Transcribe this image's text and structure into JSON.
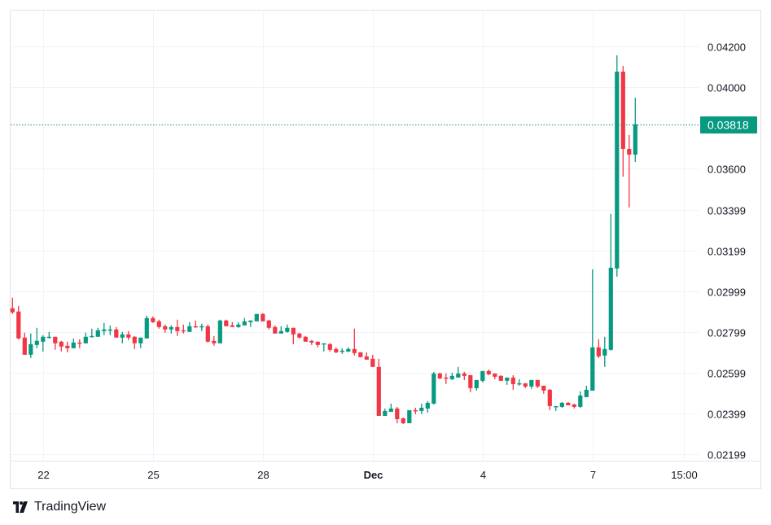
{
  "chart_data": {
    "type": "candlestick",
    "colors": {
      "up": "#089981",
      "down": "#f23645",
      "grid": "#f0f3fa",
      "last_price": "#089981"
    },
    "ylim": [
      0.02199,
      0.042
    ],
    "y_ticks": [
      "0.04200",
      "0.04000",
      "0.03600",
      "0.03399",
      "0.03199",
      "0.02999",
      "0.02799",
      "0.02599",
      "0.02399",
      "0.02199"
    ],
    "x_ticks": [
      {
        "label": "22",
        "index": 5
      },
      {
        "label": "25",
        "index": 23
      },
      {
        "label": "28",
        "index": 41
      },
      {
        "label": "Dec",
        "index": 59,
        "bold": true
      },
      {
        "label": "4",
        "index": 77
      },
      {
        "label": "7",
        "index": 95
      },
      {
        "label": "15:00",
        "index": 110
      }
    ],
    "last_price": "0.03818",
    "grid": true,
    "candles_ohlc": [
      [
        0.02915,
        0.02967,
        0.02887,
        0.02895
      ],
      [
        0.02899,
        0.02927,
        0.02763,
        0.02767
      ],
      [
        0.02771,
        0.02795,
        0.02687,
        0.02687
      ],
      [
        0.02687,
        0.02791,
        0.02671,
        0.02739
      ],
      [
        0.02735,
        0.02819,
        0.02719,
        0.02755
      ],
      [
        0.02751,
        0.02783,
        0.02703,
        0.02775
      ],
      [
        0.02771,
        0.02799,
        0.02767,
        0.02775
      ],
      [
        0.02775,
        0.02775,
        0.02711,
        0.02743
      ],
      [
        0.02751,
        0.02755,
        0.02703,
        0.02727
      ],
      [
        0.02731,
        0.02751,
        0.02699,
        0.02719
      ],
      [
        0.02719,
        0.02767,
        0.02719,
        0.02747
      ],
      [
        0.02747,
        0.02763,
        0.02719,
        0.02743
      ],
      [
        0.02743,
        0.02795,
        0.02743,
        0.02775
      ],
      [
        0.02775,
        0.02815,
        0.02771,
        0.02779
      ],
      [
        0.02775,
        0.02819,
        0.02775,
        0.02807
      ],
      [
        0.02803,
        0.02843,
        0.02783,
        0.02811
      ],
      [
        0.02807,
        0.02831,
        0.02783,
        0.02811
      ],
      [
        0.02811,
        0.02823,
        0.02771,
        0.02771
      ],
      [
        0.02771,
        0.02799,
        0.02743,
        0.02787
      ],
      [
        0.02787,
        0.02803,
        0.02759,
        0.02771
      ],
      [
        0.02775,
        0.02779,
        0.02715,
        0.02743
      ],
      [
        0.02743,
        0.02771,
        0.02719,
        0.02771
      ],
      [
        0.02767,
        0.02879,
        0.02767,
        0.02867
      ],
      [
        0.02867,
        0.02875,
        0.02843,
        0.02847
      ],
      [
        0.02851,
        0.02859,
        0.02815,
        0.02823
      ],
      [
        0.02827,
        0.02835,
        0.02795,
        0.02811
      ],
      [
        0.02811,
        0.02831,
        0.02791,
        0.02823
      ],
      [
        0.02823,
        0.02859,
        0.02779,
        0.02803
      ],
      [
        0.02807,
        0.02835,
        0.02791,
        0.02803
      ],
      [
        0.02799,
        0.02847,
        0.02799,
        0.02827
      ],
      [
        0.02827,
        0.02855,
        0.02819,
        0.02823
      ],
      [
        0.02823,
        0.02839,
        0.02803,
        0.02827
      ],
      [
        0.02827,
        0.02835,
        0.02747,
        0.02751
      ],
      [
        0.02755,
        0.02779,
        0.02731,
        0.02743
      ],
      [
        0.02743,
        0.02859,
        0.02743,
        0.02855
      ],
      [
        0.02855,
        0.02859,
        0.02827,
        0.02827
      ],
      [
        0.02831,
        0.02847,
        0.02823,
        0.02823
      ],
      [
        0.02823,
        0.02847,
        0.02819,
        0.02835
      ],
      [
        0.02831,
        0.02867,
        0.02831,
        0.02851
      ],
      [
        0.02847,
        0.02855,
        0.02823,
        0.02855
      ],
      [
        0.02851,
        0.02887,
        0.02851,
        0.02887
      ],
      [
        0.02887,
        0.02891,
        0.02851,
        0.02851
      ],
      [
        0.02855,
        0.02859,
        0.02811,
        0.02819
      ],
      [
        0.02823,
        0.02831,
        0.02791,
        0.02791
      ],
      [
        0.02791,
        0.02827,
        0.02791,
        0.02803
      ],
      [
        0.02799,
        0.02835,
        0.02795,
        0.02819
      ],
      [
        0.02819,
        0.02819,
        0.02739,
        0.02787
      ],
      [
        0.02791,
        0.02795,
        0.02767,
        0.02771
      ],
      [
        0.02775,
        0.02779,
        0.02751,
        0.02751
      ],
      [
        0.02755,
        0.02759,
        0.02735,
        0.02747
      ],
      [
        0.02751,
        0.02751,
        0.02723,
        0.02735
      ],
      [
        0.02739,
        0.02743,
        0.02703,
        0.02743
      ],
      [
        0.02739,
        0.02743,
        0.02703,
        0.02711
      ],
      [
        0.02715,
        0.02723,
        0.02695,
        0.02699
      ],
      [
        0.02703,
        0.02719,
        0.02691,
        0.02707
      ],
      [
        0.02703,
        0.02723,
        0.02699,
        0.02715
      ],
      [
        0.02715,
        0.02815,
        0.02683,
        0.02695
      ],
      [
        0.02699,
        0.02699,
        0.02675,
        0.02675
      ],
      [
        0.02679,
        0.02699,
        0.02663,
        0.02663
      ],
      [
        0.02667,
        0.02687,
        0.02627,
        0.02627
      ],
      [
        0.02627,
        0.02667,
        0.02387,
        0.02387
      ],
      [
        0.02387,
        0.02423,
        0.02387,
        0.02411
      ],
      [
        0.02407,
        0.02447,
        0.02407,
        0.02423
      ],
      [
        0.02423,
        0.02431,
        0.02351,
        0.02371
      ],
      [
        0.02375,
        0.02379,
        0.02347,
        0.02351
      ],
      [
        0.02351,
        0.02415,
        0.02351,
        0.02415
      ],
      [
        0.02415,
        0.02427,
        0.02395,
        0.02411
      ],
      [
        0.02411,
        0.02447,
        0.02395,
        0.02427
      ],
      [
        0.02423,
        0.02459,
        0.02403,
        0.02451
      ],
      [
        0.02447,
        0.02603,
        0.02443,
        0.02595
      ],
      [
        0.02595,
        0.02599,
        0.02567,
        0.02571
      ],
      [
        0.02575,
        0.02595,
        0.02543,
        0.02571
      ],
      [
        0.02567,
        0.02599,
        0.02563,
        0.02583
      ],
      [
        0.02575,
        0.02627,
        0.02575,
        0.02595
      ],
      [
        0.02595,
        0.02603,
        0.02563,
        0.02583
      ],
      [
        0.02587,
        0.02587,
        0.02503,
        0.02523
      ],
      [
        0.02523,
        0.02563,
        0.02511,
        0.02563
      ],
      [
        0.02559,
        0.02607,
        0.02551,
        0.02607
      ],
      [
        0.02607,
        0.02615,
        0.02587,
        0.02591
      ],
      [
        0.02595,
        0.02595,
        0.02567,
        0.02579
      ],
      [
        0.02583,
        0.02587,
        0.02559,
        0.02559
      ],
      [
        0.02559,
        0.02575,
        0.02539,
        0.02575
      ],
      [
        0.02575,
        0.02587,
        0.02515,
        0.02543
      ],
      [
        0.02543,
        0.02567,
        0.02535,
        0.02547
      ],
      [
        0.02547,
        0.02547,
        0.02523,
        0.02531
      ],
      [
        0.02531,
        0.02563,
        0.02519,
        0.02563
      ],
      [
        0.02563,
        0.02563,
        0.02523,
        0.02531
      ],
      [
        0.02535,
        0.02535,
        0.02495,
        0.02511
      ],
      [
        0.02515,
        0.02519,
        0.02415,
        0.02435
      ],
      [
        0.02431,
        0.02435,
        0.02411,
        0.02435
      ],
      [
        0.02431,
        0.02455,
        0.02427,
        0.02451
      ],
      [
        0.02451,
        0.02455,
        0.02439,
        0.02439
      ],
      [
        0.02443,
        0.02447,
        0.02423,
        0.02431
      ],
      [
        0.02431,
        0.02507,
        0.02427,
        0.02487
      ],
      [
        0.02479,
        0.02535,
        0.02479,
        0.02515
      ],
      [
        0.02511,
        0.03106,
        0.02511,
        0.02723
      ],
      [
        0.02723,
        0.02763,
        0.02671,
        0.02679
      ],
      [
        0.02683,
        0.02775,
        0.02627,
        0.02715
      ],
      [
        0.02711,
        0.03378,
        0.02707,
        0.03114
      ],
      [
        0.0311,
        0.04156,
        0.0307,
        0.04076
      ],
      [
        0.04076,
        0.04104,
        0.03561,
        0.03697
      ],
      [
        0.03697,
        0.03765,
        0.0341,
        0.03669
      ],
      [
        0.03669,
        0.03948,
        0.03633,
        0.03818
      ]
    ]
  },
  "branding": {
    "logo_text": "TradingView"
  }
}
